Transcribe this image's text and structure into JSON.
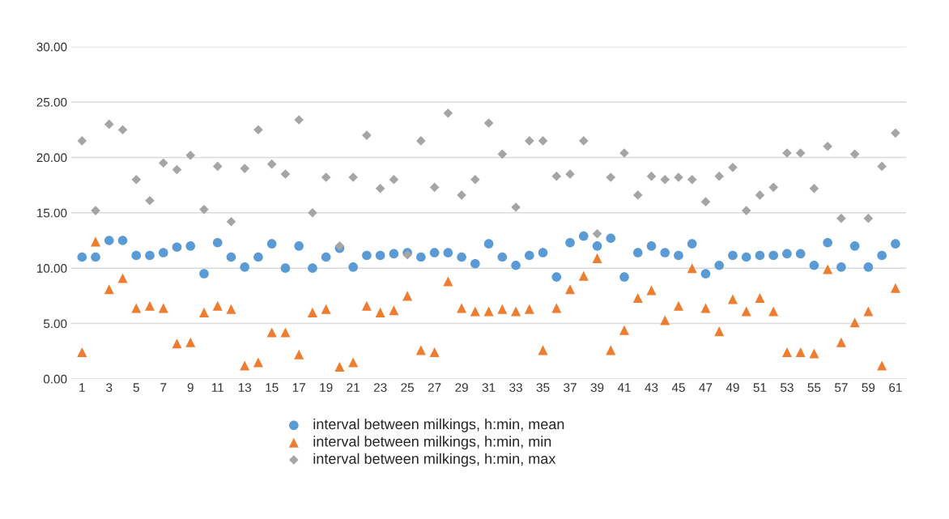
{
  "chart_data": {
    "type": "scatter",
    "categories": [
      "1",
      null,
      "3",
      null,
      "5",
      null,
      "7",
      null,
      "9",
      null,
      "11",
      null,
      "13",
      null,
      "15",
      null,
      "17",
      null,
      "19",
      null,
      "21",
      null,
      "23",
      null,
      "25",
      null,
      "27",
      null,
      "29",
      null,
      "31",
      null,
      "33",
      null,
      "35",
      null,
      "37",
      null,
      "39",
      null,
      "41",
      null,
      "43",
      null,
      "45",
      null,
      "47",
      null,
      "49",
      null,
      "51",
      null,
      "53",
      null,
      "55",
      null,
      "57",
      null,
      "59",
      null,
      "61"
    ],
    "series": [
      {
        "name": "interval between milkings, h:min, mean",
        "color": "#5b9bd5",
        "marker": "circle",
        "values": [
          11.0,
          11.0,
          12.5,
          12.5,
          11.15,
          11.15,
          11.4,
          11.9,
          12.0,
          9.5,
          12.3,
          11.0,
          10.1,
          11.0,
          12.2,
          10.0,
          12.0,
          10.0,
          11.0,
          11.8,
          10.1,
          11.15,
          11.15,
          11.3,
          11.4,
          11.0,
          11.4,
          11.4,
          11.0,
          10.4,
          12.2,
          11.0,
          10.25,
          11.15,
          11.4,
          9.2,
          12.3,
          12.9,
          12.0,
          12.7,
          9.2,
          11.4,
          12.0,
          11.4,
          11.15,
          12.2,
          9.5,
          10.25,
          11.15,
          11.0,
          11.15,
          11.15,
          11.3,
          11.3,
          10.25,
          12.3,
          10.1,
          12.0,
          10.1,
          11.15,
          12.2
        ]
      },
      {
        "name": "interval between milkings, h:min, min",
        "color": "#ed7d31",
        "marker": "triangle",
        "values": [
          2.4,
          12.4,
          8.1,
          9.1,
          6.4,
          6.6,
          6.4,
          3.2,
          3.3,
          6.0,
          6.6,
          6.3,
          1.2,
          1.5,
          4.2,
          4.2,
          2.2,
          6.0,
          6.3,
          1.1,
          1.5,
          6.6,
          6.0,
          6.2,
          7.5,
          2.6,
          2.4,
          8.8,
          6.4,
          6.1,
          6.1,
          6.3,
          6.1,
          6.3,
          2.6,
          6.4,
          8.1,
          9.3,
          10.9,
          2.6,
          4.4,
          7.3,
          8.0,
          5.3,
          6.6,
          10.0,
          6.4,
          4.3,
          7.2,
          6.1,
          7.3,
          6.1,
          2.4,
          2.4,
          2.3,
          9.9,
          3.3,
          5.1,
          6.1,
          1.2,
          8.2
        ]
      },
      {
        "name": "interval between milkings, h:min, max",
        "color": "#a5a5a5",
        "marker": "diamond",
        "values": [
          21.5,
          15.2,
          23.0,
          22.5,
          18.0,
          16.1,
          19.5,
          18.9,
          20.2,
          15.3,
          19.2,
          14.2,
          19.0,
          22.5,
          19.4,
          18.5,
          23.4,
          15.0,
          18.2,
          12.0,
          18.2,
          22.0,
          17.2,
          18.0,
          11.2,
          21.5,
          17.3,
          24.0,
          16.6,
          18.0,
          23.1,
          20.3,
          15.5,
          21.5,
          21.5,
          18.3,
          18.5,
          21.5,
          13.1,
          18.2,
          20.4,
          16.6,
          18.3,
          18.0,
          18.2,
          18.0,
          16.0,
          18.3,
          19.1,
          15.2,
          16.6,
          17.3,
          20.4,
          20.4,
          17.2,
          21.0,
          14.5,
          20.3,
          14.5,
          19.2,
          22.2
        ]
      }
    ],
    "ylim": [
      0,
      30
    ],
    "yticks": [
      {
        "value": 0,
        "label": "0.00"
      },
      {
        "value": 5,
        "label": "5.00"
      },
      {
        "value": 10,
        "label": "10.00"
      },
      {
        "value": 15,
        "label": "15.00"
      },
      {
        "value": 20,
        "label": "20.00"
      },
      {
        "value": 25,
        "label": "25.00"
      },
      {
        "value": 30,
        "label": "30.00"
      }
    ],
    "grid": "y",
    "legend": "bottom"
  }
}
